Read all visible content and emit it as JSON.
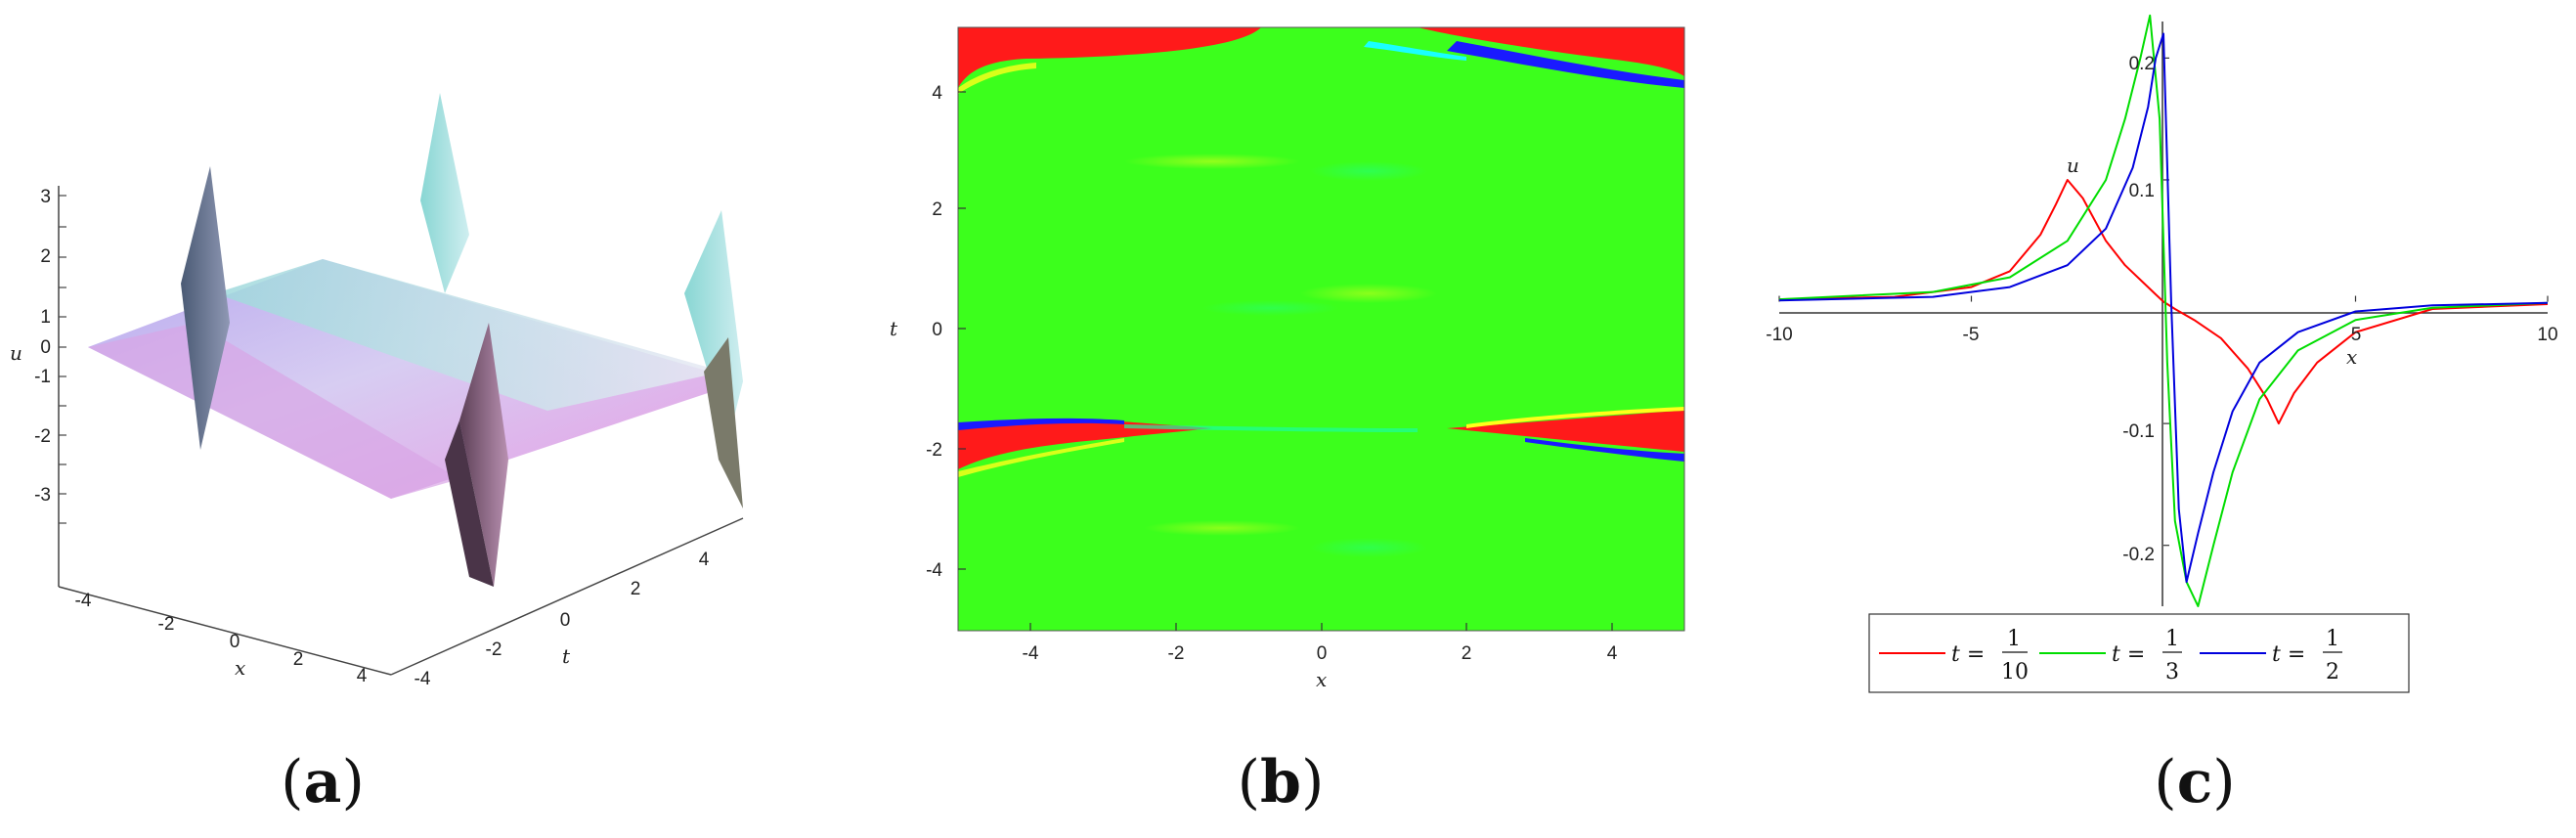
{
  "panels": {
    "a": {
      "label_open": "(",
      "label_letter": "a",
      "label_close": ")"
    },
    "b": {
      "label_open": "(",
      "label_letter": "b",
      "label_close": ")"
    },
    "c": {
      "label_open": "(",
      "label_letter": "c",
      "label_close": ")"
    }
  },
  "colors": {
    "red": "#ff1a1a",
    "green": "#33ff1a",
    "blue": "#1a1aff",
    "cyan": "#1affff",
    "yellow": "#ffff1a"
  },
  "chart_data": [
    {
      "type": "surface",
      "panel": "a",
      "zlabel": "u",
      "xlabel": "x",
      "ylabel": "t",
      "zlim": [
        -3.5,
        3.5
      ],
      "ztick_labels": [
        "3",
        "2",
        "1",
        "0",
        "-1",
        "-2",
        "-3"
      ],
      "xtick_labels": [
        "-4",
        "-2",
        "0",
        "2",
        "4"
      ],
      "ytick_labels": [
        "-4",
        "-2",
        "0",
        "2",
        "4"
      ]
    },
    {
      "type": "heatmap",
      "panel": "b",
      "xlabel": "x",
      "ylabel": "t",
      "xlim": [
        -5,
        5
      ],
      "ylim": [
        -5,
        5
      ],
      "xtick_labels": [
        "-4",
        "-2",
        "0",
        "2",
        "4"
      ],
      "ytick_labels": [
        "4",
        "2",
        "0",
        "-2",
        "-4"
      ],
      "colors": [
        "#1a1aff",
        "#1affff",
        "#33ff1a",
        "#ffff1a",
        "#ff1a1a"
      ]
    },
    {
      "type": "line",
      "panel": "c",
      "xlabel": "x",
      "ylabel": "u",
      "xlim": [
        -10,
        10
      ],
      "ylim": [
        -0.25,
        0.23
      ],
      "xtick_labels": [
        "-10",
        "-5",
        "0",
        "5",
        "10"
      ],
      "ytick_labels": [
        "0.2",
        "0.1",
        "-0.1",
        "-0.2"
      ],
      "series": [
        {
          "name": "t = 1/10",
          "label_var": "t =",
          "label_num": "1",
          "label_den": "10",
          "color": "#ff0000",
          "x": [
            -10,
            -7,
            -5,
            -4,
            -3.2,
            -2.8,
            -2.5,
            -2.1,
            -1.5,
            -1,
            -0.5,
            -0.2,
            0,
            0.3,
            0.8,
            1.5,
            2.2,
            2.7,
            3,
            3.4,
            4,
            5,
            7,
            10
          ],
          "y": [
            0.002,
            0.004,
            0.012,
            0.025,
            0.055,
            0.08,
            0.1,
            0.085,
            0.05,
            0.03,
            0.015,
            0.006,
            0,
            -0.006,
            -0.015,
            -0.03,
            -0.055,
            -0.08,
            -0.1,
            -0.075,
            -0.05,
            -0.025,
            -0.006,
            -0.002
          ]
        },
        {
          "name": "t = 1/3",
          "label_var": "t =",
          "label_num": "1",
          "label_den": "3",
          "color": "#00dd00",
          "x": [
            -10,
            -6,
            -4,
            -2.5,
            -1.5,
            -1,
            -0.6,
            -0.35,
            -0.1,
            0.1,
            0.3,
            0.6,
            0.9,
            1.3,
            1.8,
            2.5,
            3.5,
            5,
            7,
            10
          ],
          "y": [
            0.002,
            0.008,
            0.02,
            0.05,
            0.1,
            0.15,
            0.2,
            0.235,
            0.15,
            -0.05,
            -0.18,
            -0.23,
            -0.25,
            -0.2,
            -0.14,
            -0.08,
            -0.04,
            -0.015,
            -0.005,
            -0.001
          ]
        },
        {
          "name": "t = 1/2",
          "label_var": "t =",
          "label_num": "1",
          "label_den": "2",
          "color": "#0000dd",
          "x": [
            -10,
            -6,
            -4,
            -2.5,
            -1.5,
            -0.8,
            -0.4,
            -0.2,
            0,
            0.2,
            0.4,
            0.6,
            0.9,
            1.3,
            1.8,
            2.5,
            3.5,
            5,
            7,
            10
          ],
          "y": [
            0.001,
            0.004,
            0.012,
            0.03,
            0.06,
            0.11,
            0.16,
            0.2,
            0.22,
            0,
            -0.17,
            -0.23,
            -0.19,
            -0.14,
            -0.09,
            -0.05,
            -0.025,
            -0.008,
            -0.003,
            -0.001
          ]
        }
      ]
    }
  ]
}
